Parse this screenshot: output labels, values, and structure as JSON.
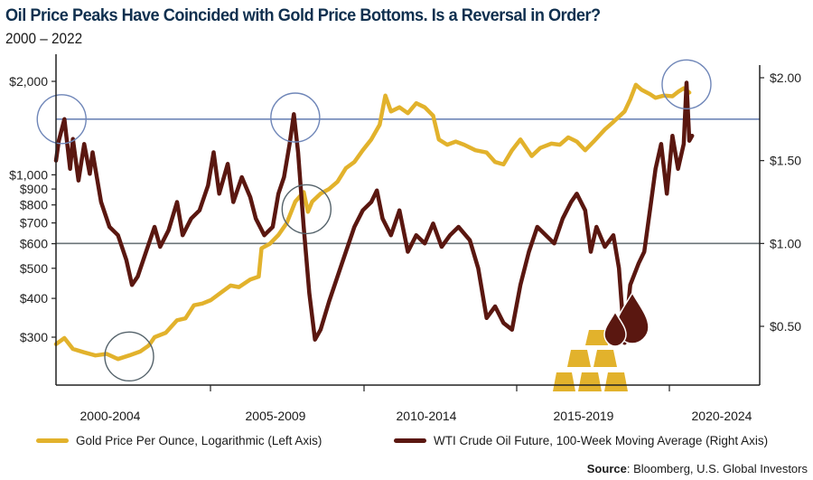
{
  "header": {
    "title": "Oil Price Peaks Have Coincided with Gold Price Bottoms. Is a Reversal in Order?",
    "subtitle": "2000 – 2022"
  },
  "legend": {
    "gold_label": "Gold Price Per Ounce, Logarithmic (Left Axis)",
    "oil_label": "WTI Crude Oil Future, 100-Week Moving Average (Right Axis)"
  },
  "source": {
    "label": "Source",
    "text": ": Bloomberg, U.S. Global Investors"
  },
  "colors": {
    "title": "#10304f",
    "gold": "#e2b22c",
    "oil": "#5a1710",
    "reference_blue": "#6f86b8",
    "reference_gray": "#6b7478",
    "axis": "#222222"
  },
  "chart_data": {
    "type": "line",
    "title": "Oil Price Peaks Have Coincided with Gold Price Bottoms. Is a Reversal in Order?",
    "subtitle": "2000 – 2022",
    "x_categories": [
      "2000-2004",
      "2005-2009",
      "2010-2014",
      "2015-2019",
      "2020-2024"
    ],
    "x_range": [
      2000.0,
      2025.0
    ],
    "left_axis": {
      "label": "Gold Price Per Ounce (log scale)",
      "scale": "log",
      "range": [
        230,
        2350
      ],
      "ticks": [
        300,
        400,
        500,
        600,
        700,
        800,
        900,
        1000,
        2000
      ],
      "tick_labels": [
        "$300",
        "$400",
        "$500",
        "$600",
        "$700",
        "$800",
        "$900",
        "$1,000",
        "$2,000"
      ]
    },
    "right_axis": {
      "label": "WTI Crude Oil Future, 100-Week Moving Average",
      "scale": "linear",
      "range": [
        0.2,
        2.07
      ],
      "ticks": [
        0.5,
        1.0,
        1.5,
        2.0
      ],
      "tick_labels": [
        "$0.50",
        "$1.00",
        "$1.50",
        "$2.00"
      ]
    },
    "reference_lines": [
      {
        "axis": "right",
        "value": 1.75,
        "color": "blue"
      },
      {
        "axis": "right",
        "value": 1.0,
        "color": "gray"
      }
    ],
    "highlight_circles": [
      {
        "x": 2000.2,
        "axis": "right",
        "value": 1.75,
        "meaning": "oil peak",
        "color": "blue"
      },
      {
        "x": 2008.5,
        "axis": "right",
        "value": 1.76,
        "meaning": "oil peak",
        "color": "blue"
      },
      {
        "x": 2022.4,
        "axis": "right",
        "value": 1.96,
        "meaning": "oil peak",
        "color": "blue"
      },
      {
        "x": 2002.6,
        "axis": "left",
        "value": 260,
        "meaning": "gold bottom",
        "color": "gray"
      },
      {
        "x": 2008.9,
        "axis": "left",
        "value": 775,
        "meaning": "gold bottom",
        "color": "gray"
      }
    ],
    "series": [
      {
        "name": "Gold Price Per Ounce, Logarithmic (Left Axis)",
        "axis": "left",
        "points": [
          [
            2000.0,
            285
          ],
          [
            2000.3,
            298
          ],
          [
            2000.6,
            275
          ],
          [
            2001.0,
            268
          ],
          [
            2001.4,
            262
          ],
          [
            2001.8,
            265
          ],
          [
            2002.2,
            255
          ],
          [
            2002.6,
            262
          ],
          [
            2003.0,
            270
          ],
          [
            2003.3,
            282
          ],
          [
            2003.5,
            300
          ],
          [
            2003.9,
            310
          ],
          [
            2004.3,
            340
          ],
          [
            2004.6,
            345
          ],
          [
            2004.9,
            380
          ],
          [
            2005.2,
            385
          ],
          [
            2005.5,
            395
          ],
          [
            2005.9,
            420
          ],
          [
            2006.2,
            440
          ],
          [
            2006.5,
            435
          ],
          [
            2006.9,
            460
          ],
          [
            2007.2,
            470
          ],
          [
            2007.3,
            580
          ],
          [
            2007.6,
            600
          ],
          [
            2007.9,
            640
          ],
          [
            2008.2,
            700
          ],
          [
            2008.5,
            820
          ],
          [
            2008.8,
            880
          ],
          [
            2008.95,
            760
          ],
          [
            2009.1,
            820
          ],
          [
            2009.4,
            870
          ],
          [
            2009.7,
            900
          ],
          [
            2010.0,
            950
          ],
          [
            2010.3,
            1050
          ],
          [
            2010.6,
            1100
          ],
          [
            2010.9,
            1200
          ],
          [
            2011.2,
            1300
          ],
          [
            2011.5,
            1450
          ],
          [
            2011.7,
            1800
          ],
          [
            2011.9,
            1600
          ],
          [
            2012.2,
            1650
          ],
          [
            2012.5,
            1580
          ],
          [
            2012.8,
            1700
          ],
          [
            2013.1,
            1650
          ],
          [
            2013.4,
            1550
          ],
          [
            2013.6,
            1300
          ],
          [
            2013.9,
            1250
          ],
          [
            2014.2,
            1280
          ],
          [
            2014.5,
            1250
          ],
          [
            2014.9,
            1200
          ],
          [
            2015.3,
            1180
          ],
          [
            2015.6,
            1100
          ],
          [
            2015.9,
            1080
          ],
          [
            2016.2,
            1200
          ],
          [
            2016.5,
            1300
          ],
          [
            2016.9,
            1150
          ],
          [
            2017.2,
            1220
          ],
          [
            2017.6,
            1260
          ],
          [
            2017.9,
            1250
          ],
          [
            2018.2,
            1320
          ],
          [
            2018.5,
            1280
          ],
          [
            2018.8,
            1200
          ],
          [
            2019.1,
            1280
          ],
          [
            2019.5,
            1400
          ],
          [
            2019.8,
            1480
          ],
          [
            2020.2,
            1600
          ],
          [
            2020.4,
            1750
          ],
          [
            2020.6,
            1950
          ],
          [
            2020.8,
            1880
          ],
          [
            2021.1,
            1820
          ],
          [
            2021.3,
            1770
          ],
          [
            2021.6,
            1800
          ],
          [
            2021.9,
            1790
          ],
          [
            2022.1,
            1850
          ],
          [
            2022.3,
            1900
          ],
          [
            2022.5,
            1840
          ]
        ]
      },
      {
        "name": "WTI Crude Oil Future, 100-Week Moving Average (Right Axis)",
        "axis": "right",
        "points": [
          [
            2000.0,
            1.5
          ],
          [
            2000.1,
            1.62
          ],
          [
            2000.3,
            1.75
          ],
          [
            2000.5,
            1.45
          ],
          [
            2000.6,
            1.63
          ],
          [
            2000.8,
            1.38
          ],
          [
            2001.0,
            1.6
          ],
          [
            2001.2,
            1.42
          ],
          [
            2001.3,
            1.55
          ],
          [
            2001.6,
            1.25
          ],
          [
            2001.9,
            1.1
          ],
          [
            2002.2,
            1.05
          ],
          [
            2002.5,
            0.9
          ],
          [
            2002.7,
            0.75
          ],
          [
            2002.9,
            0.8
          ],
          [
            2003.2,
            0.95
          ],
          [
            2003.5,
            1.1
          ],
          [
            2003.7,
            0.98
          ],
          [
            2004.0,
            1.08
          ],
          [
            2004.3,
            1.25
          ],
          [
            2004.5,
            1.05
          ],
          [
            2004.8,
            1.15
          ],
          [
            2005.1,
            1.2
          ],
          [
            2005.4,
            1.35
          ],
          [
            2005.6,
            1.55
          ],
          [
            2005.8,
            1.3
          ],
          [
            2006.1,
            1.48
          ],
          [
            2006.3,
            1.25
          ],
          [
            2006.6,
            1.4
          ],
          [
            2006.9,
            1.28
          ],
          [
            2007.1,
            1.15
          ],
          [
            2007.4,
            1.05
          ],
          [
            2007.7,
            1.1
          ],
          [
            2007.9,
            1.3
          ],
          [
            2008.1,
            1.4
          ],
          [
            2008.3,
            1.6
          ],
          [
            2008.45,
            1.78
          ],
          [
            2008.6,
            1.55
          ],
          [
            2008.8,
            1.1
          ],
          [
            2009.0,
            0.7
          ],
          [
            2009.2,
            0.42
          ],
          [
            2009.4,
            0.48
          ],
          [
            2009.7,
            0.65
          ],
          [
            2010.0,
            0.8
          ],
          [
            2010.3,
            0.95
          ],
          [
            2010.6,
            1.1
          ],
          [
            2010.9,
            1.2
          ],
          [
            2011.2,
            1.25
          ],
          [
            2011.4,
            1.32
          ],
          [
            2011.6,
            1.15
          ],
          [
            2011.9,
            1.05
          ],
          [
            2012.2,
            1.2
          ],
          [
            2012.5,
            0.95
          ],
          [
            2012.8,
            1.05
          ],
          [
            2013.1,
            1.0
          ],
          [
            2013.4,
            1.12
          ],
          [
            2013.7,
            0.98
          ],
          [
            2014.0,
            1.05
          ],
          [
            2014.3,
            1.1
          ],
          [
            2014.7,
            1.02
          ],
          [
            2015.0,
            0.85
          ],
          [
            2015.3,
            0.55
          ],
          [
            2015.6,
            0.62
          ],
          [
            2015.9,
            0.52
          ],
          [
            2016.2,
            0.48
          ],
          [
            2016.5,
            0.75
          ],
          [
            2016.8,
            0.95
          ],
          [
            2017.1,
            1.1
          ],
          [
            2017.4,
            1.05
          ],
          [
            2017.7,
            1.0
          ],
          [
            2018.0,
            1.15
          ],
          [
            2018.3,
            1.25
          ],
          [
            2018.5,
            1.3
          ],
          [
            2018.8,
            1.2
          ],
          [
            2019.0,
            0.95
          ],
          [
            2019.2,
            1.1
          ],
          [
            2019.5,
            0.98
          ],
          [
            2019.8,
            1.05
          ],
          [
            2020.0,
            0.85
          ],
          [
            2020.2,
            0.4
          ],
          [
            2020.4,
            0.75
          ],
          [
            2020.7,
            0.88
          ],
          [
            2020.9,
            0.95
          ],
          [
            2021.1,
            1.2
          ],
          [
            2021.3,
            1.45
          ],
          [
            2021.5,
            1.6
          ],
          [
            2021.7,
            1.3
          ],
          [
            2021.9,
            1.65
          ],
          [
            2022.1,
            1.45
          ],
          [
            2022.3,
            1.6
          ],
          [
            2022.4,
            1.97
          ],
          [
            2022.5,
            1.62
          ],
          [
            2022.6,
            1.65
          ]
        ]
      }
    ],
    "legend_position": "bottom",
    "grid": false
  }
}
